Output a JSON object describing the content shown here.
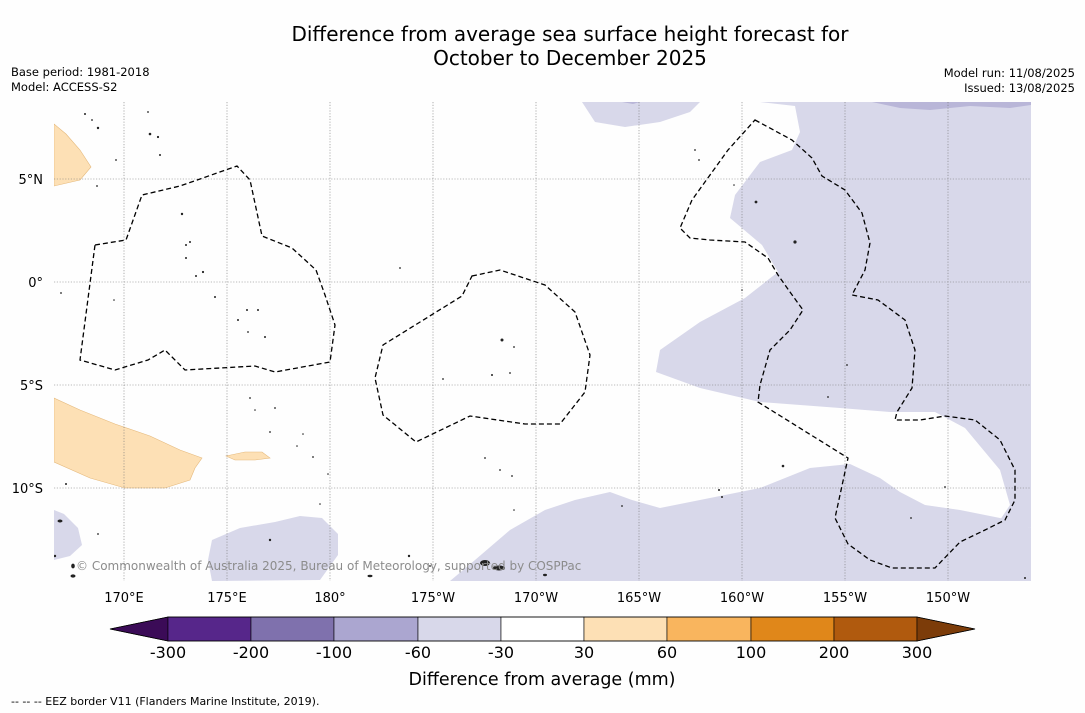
{
  "title": {
    "line1": "Difference from average sea surface height forecast for",
    "line2": "October to December 2025"
  },
  "meta_left": {
    "base_period": "Base period: 1981-2018",
    "model": "Model: ACCESS-S2"
  },
  "meta_right": {
    "model_run": "Model run: 11/08/2025",
    "issued": "Issued: 13/08/2025"
  },
  "map": {
    "lat_labels": [
      "5°N",
      "0°",
      "5°S",
      "10°S"
    ],
    "lon_labels": [
      "170°E",
      "175°E",
      "180°",
      "175°W",
      "170°W",
      "165°W",
      "160°W",
      "155°W",
      "150°W"
    ],
    "copyright": "© Commonwealth of Australia 2025, Bureau of Meteorology, supported by COSPPac"
  },
  "colorbar": {
    "title": "Difference from average (mm)",
    "ticks": [
      "-300",
      "-200",
      "-100",
      "-60",
      "-30",
      "30",
      "60",
      "100",
      "200",
      "300"
    ],
    "colors": [
      "#3b0b57",
      "#56268a",
      "#7f71ad",
      "#aba6d0",
      "#d8d8ea",
      "#ffffff",
      "#fde0b5",
      "#f9b55e",
      "#e0871a",
      "#b05a0e",
      "#7c3c09"
    ]
  },
  "footnote": "--  --  -- EEZ border V11 (Flanders Marine Institute, 2019)."
}
